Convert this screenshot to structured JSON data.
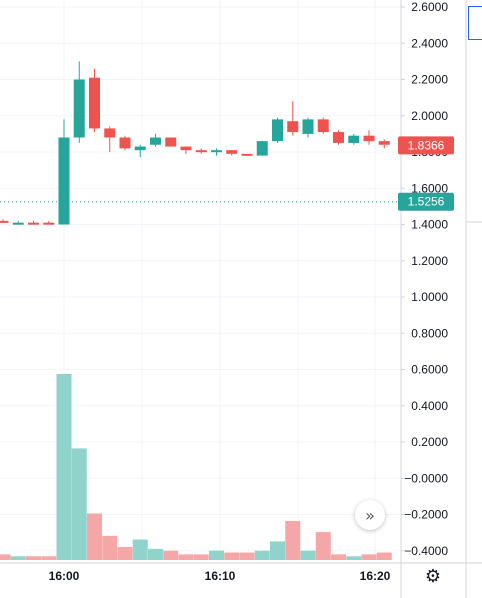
{
  "chart_data": {
    "type": "candlestick",
    "price_axis": {
      "ticks": [
        "2.6000",
        "2.4000",
        "2.2000",
        "2.0000",
        "1.8000",
        "1.6000",
        "1.4000",
        "1.2000",
        "1.0000",
        "0.8000",
        "0.6000",
        "0.4000",
        "0.2000",
        "−0.0000",
        "−0.2000",
        "−0.4000"
      ],
      "range": [
        -0.45,
        2.64
      ]
    },
    "time_axis": {
      "labels": [
        "16:00",
        "16:10",
        "16:20"
      ]
    },
    "last_price": {
      "label": "1.8366",
      "value": 1.8366,
      "color": "#ef5350"
    },
    "reference_line": {
      "label": "1.5256",
      "value": 1.5256,
      "color": "#26a69a"
    },
    "candles": [
      {
        "o": 1.42,
        "h": 1.43,
        "l": 1.41,
        "c": 1.41
      },
      {
        "o": 1.41,
        "h": 1.42,
        "l": 1.4,
        "c": 1.41
      },
      {
        "o": 1.41,
        "h": 1.42,
        "l": 1.4,
        "c": 1.4
      },
      {
        "o": 1.41,
        "h": 1.42,
        "l": 1.4,
        "c": 1.4
      },
      {
        "o": 1.4,
        "h": 1.98,
        "l": 1.4,
        "c": 1.88
      },
      {
        "o": 1.88,
        "h": 2.3,
        "l": 1.85,
        "c": 2.2
      },
      {
        "o": 2.21,
        "h": 2.26,
        "l": 1.91,
        "c": 1.93
      },
      {
        "o": 1.93,
        "h": 1.94,
        "l": 1.8,
        "c": 1.88
      },
      {
        "o": 1.88,
        "h": 1.89,
        "l": 1.81,
        "c": 1.82
      },
      {
        "o": 1.81,
        "h": 1.84,
        "l": 1.77,
        "c": 1.83
      },
      {
        "o": 1.84,
        "h": 1.9,
        "l": 1.83,
        "c": 1.88
      },
      {
        "o": 1.88,
        "h": 1.88,
        "l": 1.83,
        "c": 1.83
      },
      {
        "o": 1.83,
        "h": 1.83,
        "l": 1.79,
        "c": 1.81
      },
      {
        "o": 1.81,
        "h": 1.82,
        "l": 1.79,
        "c": 1.8
      },
      {
        "o": 1.8,
        "h": 1.82,
        "l": 1.78,
        "c": 1.81
      },
      {
        "o": 1.81,
        "h": 1.81,
        "l": 1.78,
        "c": 1.79
      },
      {
        "o": 1.79,
        "h": 1.79,
        "l": 1.78,
        "c": 1.78
      },
      {
        "o": 1.78,
        "h": 1.86,
        "l": 1.78,
        "c": 1.86
      },
      {
        "o": 1.86,
        "h": 1.99,
        "l": 1.85,
        "c": 1.98
      },
      {
        "o": 1.97,
        "h": 2.08,
        "l": 1.89,
        "c": 1.91
      },
      {
        "o": 1.9,
        "h": 1.99,
        "l": 1.88,
        "c": 1.98
      },
      {
        "o": 1.98,
        "h": 1.99,
        "l": 1.9,
        "c": 1.91
      },
      {
        "o": 1.91,
        "h": 1.92,
        "l": 1.84,
        "c": 1.85
      },
      {
        "o": 1.85,
        "h": 1.9,
        "l": 1.84,
        "c": 1.89
      },
      {
        "o": 1.89,
        "h": 1.92,
        "l": 1.84,
        "c": 1.86
      },
      {
        "o": 1.86,
        "h": 1.87,
        "l": 1.82,
        "c": 1.84
      }
    ],
    "volume_relative": [
      0.03,
      0.02,
      0.02,
      0.02,
      1.0,
      0.6,
      0.25,
      0.13,
      0.07,
      0.11,
      0.06,
      0.05,
      0.03,
      0.03,
      0.05,
      0.04,
      0.04,
      0.05,
      0.1,
      0.21,
      0.05,
      0.15,
      0.03,
      0.02,
      0.03,
      0.04
    ],
    "colors": {
      "up": "#26a69a",
      "down": "#ef5350",
      "up_volume": "#8fd3cb",
      "down_volume": "#f5a6a6",
      "grid": "#f0f3fa",
      "axis_border": "#d1d4dc"
    },
    "grid": true
  }
}
